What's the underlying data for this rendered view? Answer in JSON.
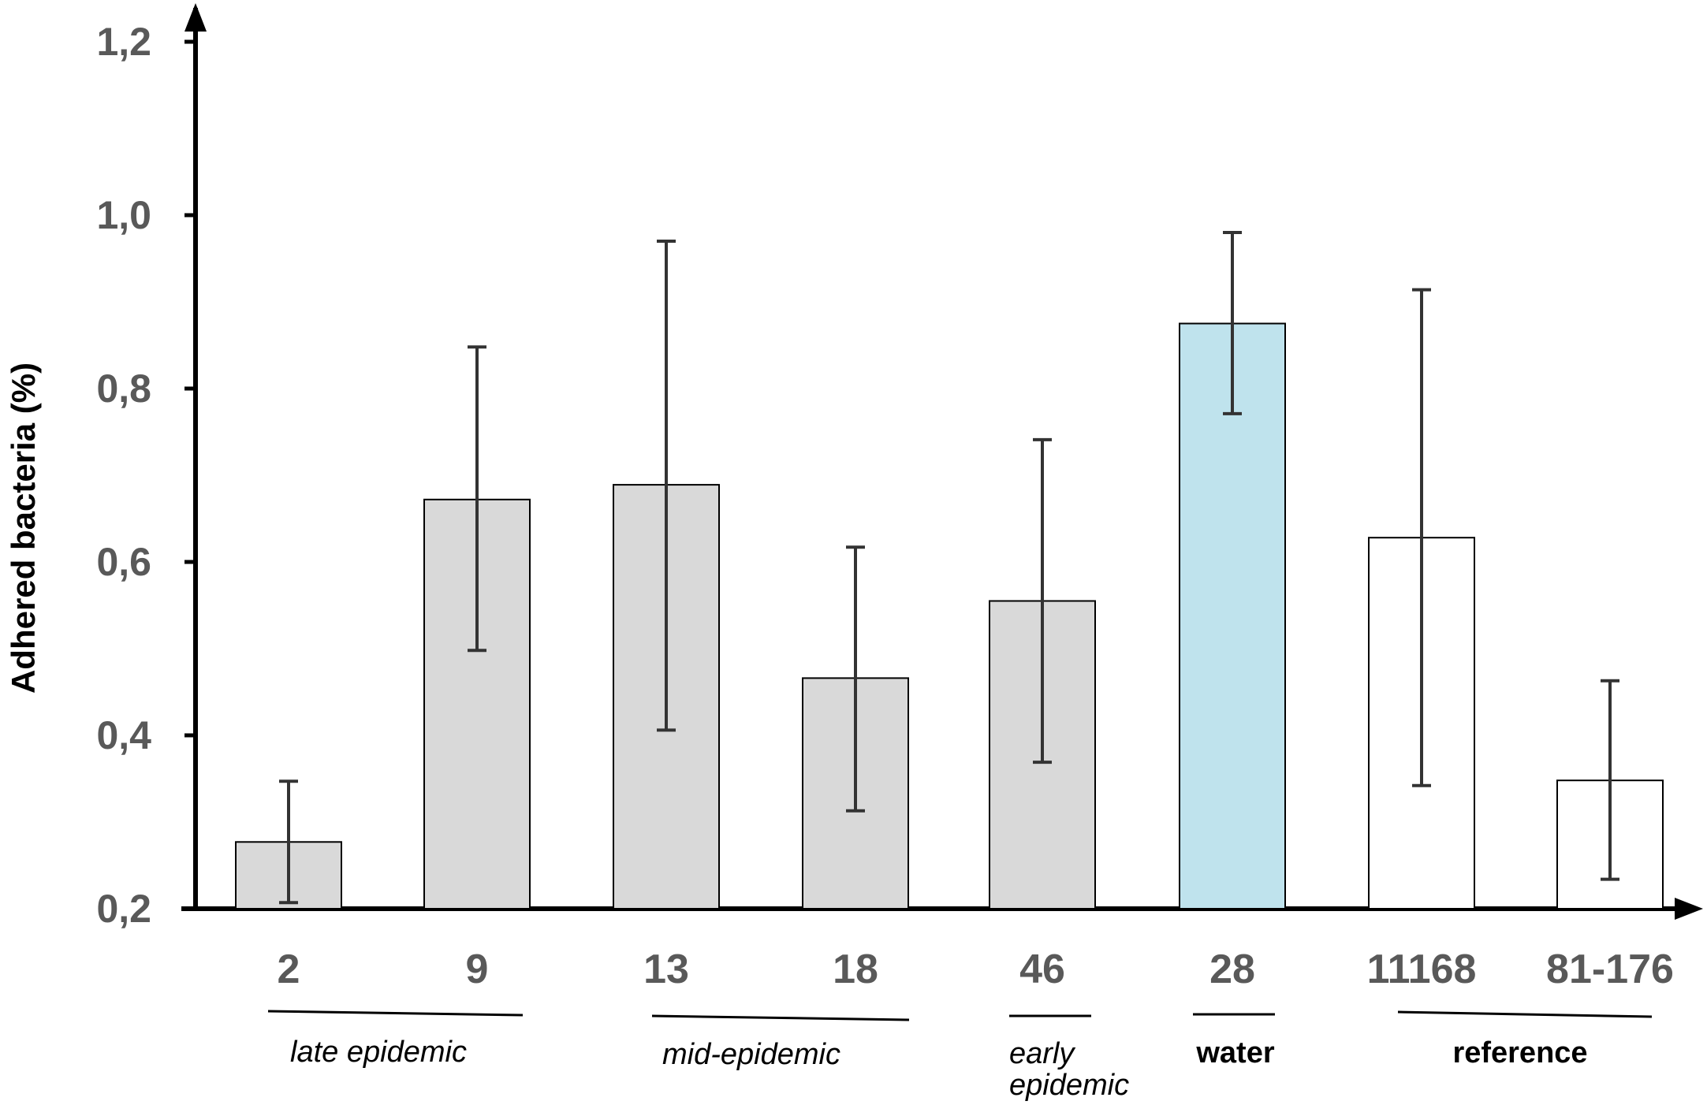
{
  "chart_data": {
    "type": "bar",
    "title": "",
    "xlabel": "",
    "ylabel": "Adhered bacteria (%)",
    "ylim": [
      0.2,
      1.2
    ],
    "yticks": [
      "0,2",
      "0,4",
      "0,6",
      "0,8",
      "1,0",
      "1,2"
    ],
    "ytick_values": [
      0.2,
      0.4,
      0.6,
      0.8,
      1.0,
      1.2
    ],
    "grid": false,
    "categories": [
      "2",
      "9",
      "13",
      "18",
      "46",
      "28",
      "11168",
      "81-176"
    ],
    "values": [
      0.277,
      0.672,
      0.689,
      0.466,
      0.555,
      0.875,
      0.628,
      0.348
    ],
    "error_low": [
      0.207,
      0.498,
      0.406,
      0.313,
      0.369,
      0.771,
      0.342,
      0.234
    ],
    "error_high": [
      0.347,
      0.848,
      0.97,
      0.617,
      0.741,
      0.98,
      0.914,
      0.463
    ],
    "bar_colors": [
      "#d9d9d9",
      "#d9d9d9",
      "#d9d9d9",
      "#d9d9d9",
      "#d9d9d9",
      "#bfe3ed",
      "#ffffff",
      "#ffffff"
    ],
    "groups": [
      {
        "label": "late epidemic",
        "first": 0,
        "last": 1,
        "style": "italic"
      },
      {
        "label": "mid-epidemic",
        "first": 2,
        "last": 3,
        "style": "italic"
      },
      {
        "label_lines": [
          "early",
          "epidemic"
        ],
        "first": 4,
        "last": 4,
        "style": "italic"
      },
      {
        "label": "water",
        "first": 5,
        "last": 5,
        "style": "bold"
      },
      {
        "label": "reference",
        "first": 6,
        "last": 7,
        "style": "bold"
      }
    ]
  }
}
